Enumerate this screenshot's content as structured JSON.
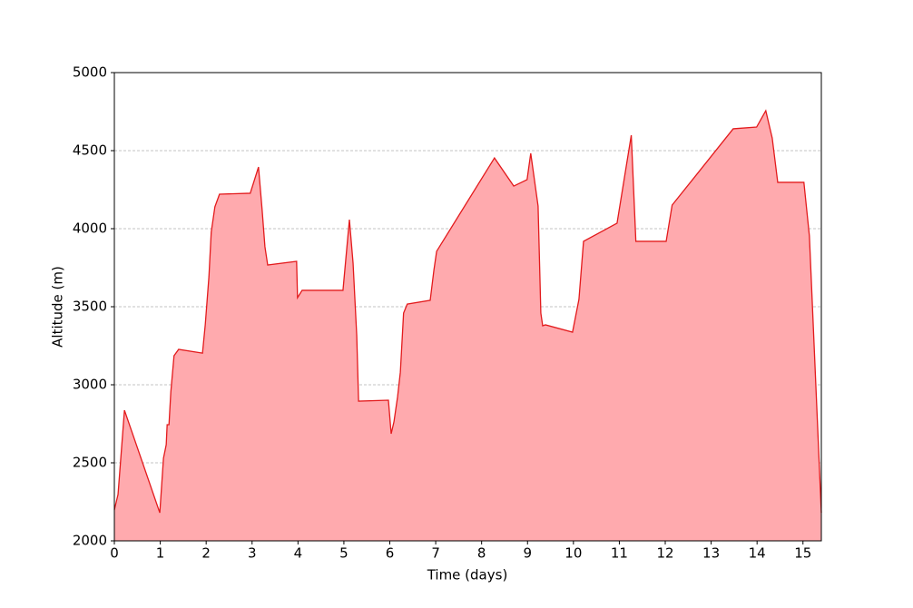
{
  "chart_data": {
    "type": "area",
    "xlabel": "Time (days)",
    "ylabel": "Altitude (m)",
    "x": [
      0,
      0.08,
      0.22,
      0.99,
      1.07,
      1.13,
      1.15,
      1.19,
      1.23,
      1.3,
      1.4,
      1.92,
      1.98,
      2.06,
      2.11,
      2.19,
      2.29,
      2.96,
      3.14,
      3.22,
      3.28,
      3.34,
      3.97,
      3.99,
      4.09,
      4.98,
      5.12,
      5.2,
      5.28,
      5.32,
      5.97,
      6.03,
      6.09,
      6.17,
      6.23,
      6.3,
      6.38,
      6.88,
      6.96,
      7.02,
      8.28,
      8.7,
      8.99,
      9.07,
      9.23,
      9.29,
      9.33,
      9.39,
      9.98,
      10.12,
      10.22,
      10.95,
      11.26,
      11.36,
      12.02,
      12.15,
      13.48,
      13.99,
      14.19,
      14.33,
      14.45,
      15.02,
      15.14,
      15.4
    ],
    "series": [
      {
        "color": "#e31a1c",
        "fill": "#ffaaae",
        "values": [
          2198,
          2297,
          2837,
          2180,
          2529,
          2616,
          2744,
          2744,
          2953,
          3186,
          3227,
          3203,
          3384,
          3692,
          3977,
          4140,
          4221,
          4227,
          4395,
          4116,
          3884,
          3767,
          3791,
          3558,
          3605,
          3605,
          4058,
          3779,
          3314,
          2895,
          2901,
          2686,
          2762,
          2924,
          3081,
          3459,
          3517,
          3541,
          3733,
          3855,
          4453,
          4273,
          4314,
          4483,
          4145,
          3459,
          3378,
          3384,
          3337,
          3547,
          3919,
          4035,
          4599,
          3919,
          3919,
          4151,
          4640,
          4651,
          4756,
          4581,
          4297,
          4297,
          3953,
          2180
        ]
      }
    ],
    "xlim": [
      0,
      15.4
    ],
    "xticks": [
      0,
      1,
      2,
      3,
      4,
      5,
      6,
      7,
      8,
      9,
      10,
      11,
      12,
      13,
      14,
      15
    ],
    "ylim": [
      2000,
      5000
    ],
    "yticks": [
      2000,
      2500,
      3000,
      3500,
      4000,
      4500,
      5000
    ],
    "grid": "y"
  }
}
